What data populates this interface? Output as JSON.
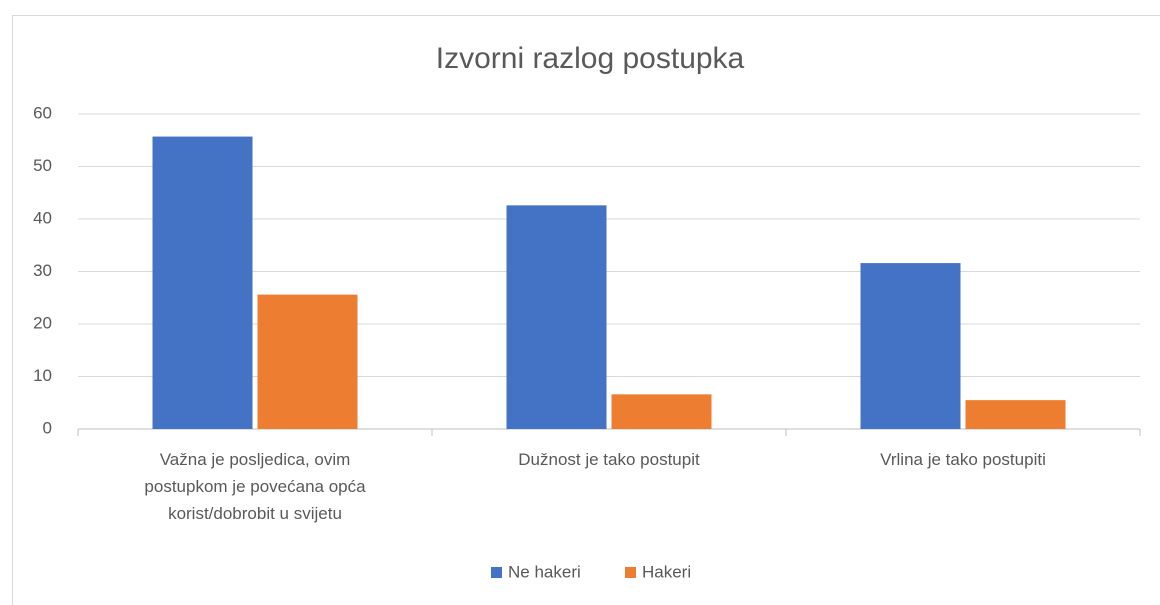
{
  "chart_data": {
    "type": "bar",
    "title": "Izvorni razlog postupka",
    "categories": [
      "Važna je posljedica, ovim postupkom je povećana opća korist/dobrobit u svijetu",
      "Dužnost je tako postupit",
      "Vrlina je tako postupiti"
    ],
    "series": [
      {
        "name": "Ne hakeri",
        "color": "#4472c4",
        "values": [
          55.7,
          42.6,
          31.6
        ]
      },
      {
        "name": "Hakeri",
        "color": "#ed7d31",
        "values": [
          25.6,
          6.6,
          5.5
        ]
      }
    ],
    "ylim": [
      0,
      60
    ],
    "yticks": [
      0,
      10,
      20,
      30,
      40,
      50,
      60
    ],
    "grid": true,
    "legend": "bottom"
  }
}
